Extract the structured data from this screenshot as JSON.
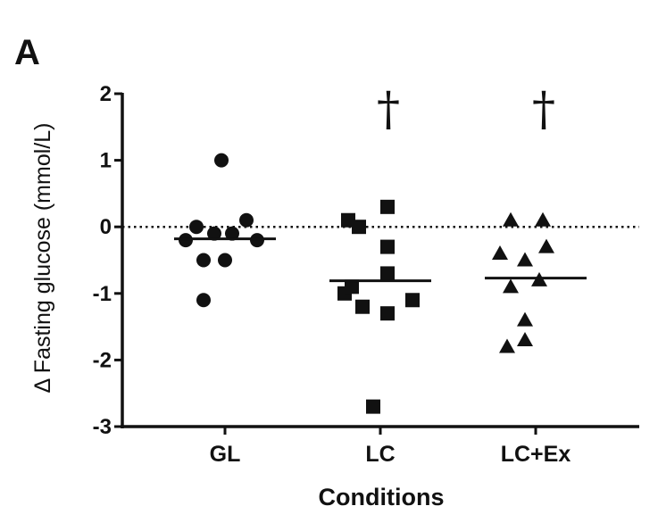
{
  "panel_label": "A",
  "chart_data": {
    "type": "scatter",
    "title": "",
    "xlabel": "Conditions",
    "ylabel": "Δ Fasting glucose (mmol/L)",
    "ylim": [
      -3,
      2
    ],
    "yticks": [
      2,
      1,
      0,
      -1,
      -2,
      -3
    ],
    "reference_line": {
      "y": 0,
      "style": "dotted"
    },
    "categories": [
      "GL",
      "LC",
      "LC+Ex"
    ],
    "series": [
      {
        "category": "GL",
        "marker": "circle",
        "points": [
          {
            "x": -0.55,
            "y": -0.2
          },
          {
            "x": -0.4,
            "y": 0.0
          },
          {
            "x": -0.3,
            "y": -0.5
          },
          {
            "x": -0.15,
            "y": -0.1
          },
          {
            "x": -0.3,
            "y": -1.1
          },
          {
            "x": -0.05,
            "y": 1.0
          },
          {
            "x": 0.0,
            "y": -0.5
          },
          {
            "x": 0.1,
            "y": -0.1
          },
          {
            "x": 0.3,
            "y": 0.1
          },
          {
            "x": 0.45,
            "y": -0.2
          }
        ],
        "mean": -0.18
      },
      {
        "category": "LC",
        "marker": "square",
        "points": [
          {
            "x": -0.45,
            "y": 0.1
          },
          {
            "x": -0.3,
            "y": 0.0
          },
          {
            "x": -0.5,
            "y": -1.0
          },
          {
            "x": -0.4,
            "y": -0.9
          },
          {
            "x": -0.25,
            "y": -1.2
          },
          {
            "x": -0.1,
            "y": -2.7
          },
          {
            "x": 0.1,
            "y": 0.3
          },
          {
            "x": 0.1,
            "y": -0.3
          },
          {
            "x": 0.1,
            "y": -0.7
          },
          {
            "x": 0.1,
            "y": -1.3
          },
          {
            "x": 0.45,
            "y": -1.1
          }
        ],
        "mean": -0.81,
        "significance": "†"
      },
      {
        "category": "LC+Ex",
        "marker": "triangle",
        "points": [
          {
            "x": -0.35,
            "y": 0.1
          },
          {
            "x": 0.1,
            "y": 0.1
          },
          {
            "x": -0.5,
            "y": -0.4
          },
          {
            "x": 0.15,
            "y": -0.3
          },
          {
            "x": -0.15,
            "y": -0.5
          },
          {
            "x": -0.35,
            "y": -0.9
          },
          {
            "x": 0.05,
            "y": -0.8
          },
          {
            "x": -0.15,
            "y": -1.4
          },
          {
            "x": -0.4,
            "y": -1.8
          },
          {
            "x": -0.15,
            "y": -1.7
          }
        ],
        "mean": -0.77,
        "significance": "†"
      }
    ]
  }
}
